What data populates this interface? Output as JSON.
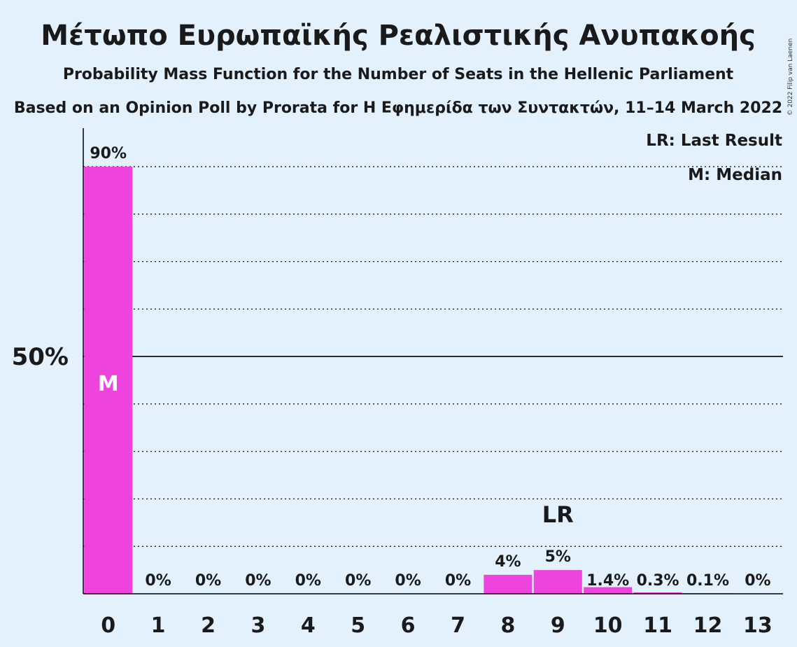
{
  "title": "Μέτωπο Ευρωπαϊκής Ρεαλιστικής Ανυπακοής",
  "subtitle": "Probability Mass Function for the Number of Seats in the Hellenic Parliament",
  "subtitle2": "Based on an Opinion Poll by Prorata for Η Εφημερίδα των Συντακτών, 11–14 March 2022",
  "credit": "© 2022 Filip van Laenen",
  "legend": {
    "last_result": "LR: Last Result",
    "median": "M: Median"
  },
  "colors": {
    "bar": "#ee44dd",
    "background": "#e3f1fd"
  },
  "chart_data": {
    "type": "bar",
    "categories": [
      "0",
      "1",
      "2",
      "3",
      "4",
      "5",
      "6",
      "7",
      "8",
      "9",
      "10",
      "11",
      "12",
      "13"
    ],
    "values": [
      90,
      0,
      0,
      0,
      0,
      0,
      0,
      0,
      4,
      5,
      1.4,
      0.3,
      0.1,
      0
    ],
    "value_labels": [
      "90%",
      "0%",
      "0%",
      "0%",
      "0%",
      "0%",
      "0%",
      "0%",
      "4%",
      "5%",
      "1.4%",
      "0.3%",
      "0.1%",
      "0%"
    ],
    "ylim": [
      0,
      90
    ],
    "y_ticks": [
      {
        "value": 50,
        "label": "50%"
      }
    ],
    "gridlines": [
      10,
      20,
      30,
      40,
      50,
      60,
      70,
      80,
      90
    ],
    "median_index": 0,
    "median_label": "M",
    "last_result_index": 9,
    "last_result_label": "LR",
    "legend_position": "top-right"
  }
}
